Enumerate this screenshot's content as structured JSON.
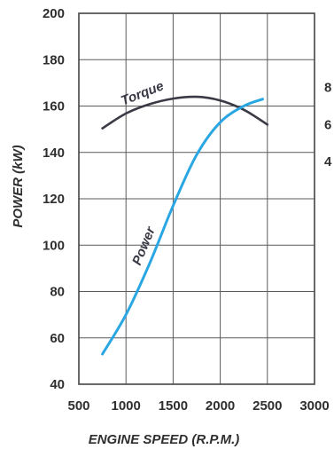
{
  "chart_data": {
    "type": "line",
    "title": "",
    "xlabel": "ENGINE SPEED (R.P.M.)",
    "ylabel": "POWER (kW)",
    "xlim": [
      500,
      3000
    ],
    "ylim": [
      40,
      200
    ],
    "y2lim": [
      -8,
      12
    ],
    "xticks": [
      "500",
      "1000",
      "1500",
      "2000",
      "2500",
      "3000"
    ],
    "yticks": [
      "40",
      "60",
      "80",
      "100",
      "120",
      "140",
      "160",
      "180",
      "200"
    ],
    "y2ticks": [
      "4",
      "6",
      "8"
    ],
    "grid": true,
    "series": [
      {
        "name": "Torque",
        "axis": "right",
        "color": "#3a3a46",
        "x": [
          750,
          1000,
          1250,
          1500,
          1750,
          2000,
          2250,
          2500
        ],
        "y": [
          5.8,
          6.6,
          7.1,
          7.4,
          7.5,
          7.3,
          6.8,
          6.0
        ]
      },
      {
        "name": "Power",
        "axis": "left",
        "color": "#2aa7e3",
        "x": [
          750,
          1000,
          1250,
          1500,
          1750,
          2000,
          2250,
          2450
        ],
        "y": [
          53,
          70,
          92,
          117,
          139,
          153,
          160,
          163
        ]
      }
    ]
  }
}
